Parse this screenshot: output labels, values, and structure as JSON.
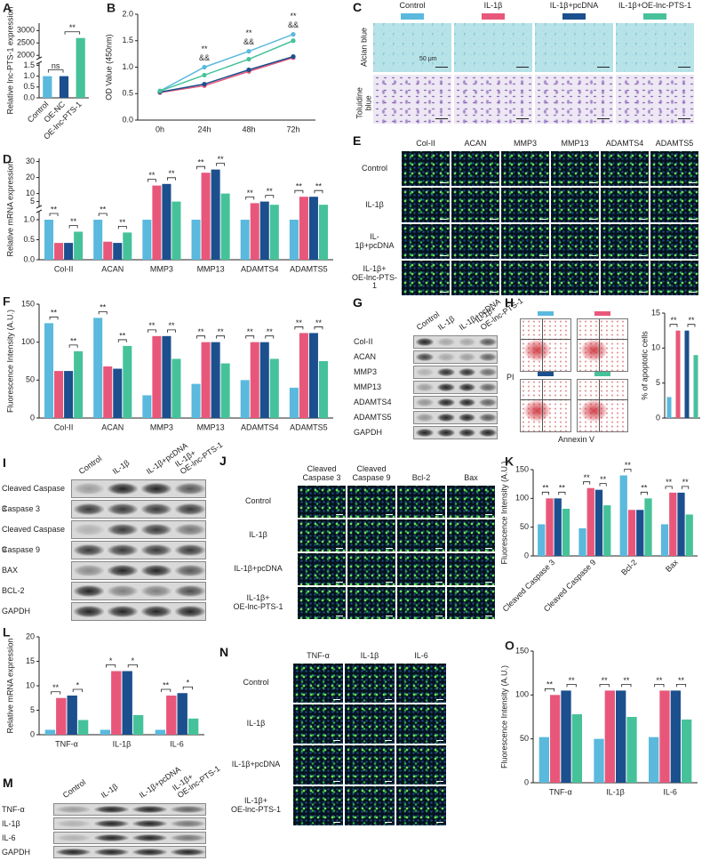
{
  "chart_data": [
    {
      "label": "A",
      "type": "bar",
      "y_label": "Relative lnc-PTS-1 expression",
      "categories": [
        "Control",
        "OE-NC",
        "OE-lnc-PTS-1"
      ],
      "values": [
        1,
        1,
        2700
      ],
      "colors": [
        "#5ab9dd",
        "#1c4f8e",
        "#46c29b"
      ],
      "ylim": [
        0,
        3300
      ],
      "ybreak": [
        1.6,
        1900
      ],
      "yticks": [
        {
          "value": 0,
          "label": "0.0"
        },
        {
          "value": 0.5,
          "label": "0.5"
        },
        {
          "value": 1,
          "label": "1.0"
        },
        {
          "value": 1.5,
          "label": "1.5"
        },
        2000,
        2500,
        3000
      ],
      "comparisons": [
        {
          "pair": [
            0,
            1
          ],
          "label": "ns"
        },
        {
          "pair": [
            1,
            2
          ],
          "label": "**"
        }
      ]
    },
    {
      "label": "B",
      "type": "line",
      "y_label": "OD Value (450nm)",
      "categories": [
        "0h",
        "24h",
        "48h",
        "72h"
      ],
      "series": [
        {
          "color": "#5ab9dd",
          "values": [
            0.55,
            1.0,
            1.3,
            1.62
          ]
        },
        {
          "color": "#e8577a",
          "values": [
            0.52,
            0.65,
            0.92,
            1.18
          ]
        },
        {
          "color": "#1c4f8e",
          "values": [
            0.53,
            0.68,
            0.95,
            1.2
          ]
        },
        {
          "color": "#46c29b",
          "values": [
            0.55,
            0.85,
            1.15,
            1.5
          ]
        }
      ],
      "ylim": [
        0,
        2
      ],
      "yticks": [
        {
          "value": 0,
          "label": "0.0"
        },
        {
          "value": 0.5,
          "label": "0.5"
        },
        {
          "value": 1,
          "label": "1.0"
        },
        {
          "value": 1.5,
          "label": "1.5"
        },
        {
          "value": 2,
          "label": "2.0"
        }
      ],
      "annotations": [
        {
          "category": 1,
          "label": "**"
        },
        {
          "category": 1,
          "label": "&&"
        },
        {
          "category": 2,
          "label": "**"
        },
        {
          "category": 2,
          "label": "&&"
        },
        {
          "category": 3,
          "label": "**"
        },
        {
          "category": 3,
          "label": "&&"
        }
      ]
    },
    {
      "label": "D",
      "type": "bar",
      "y_label": "Relative mRNA expression",
      "categories": [
        "Col-II",
        "ACAN",
        "MMP3",
        "MMP13",
        "ADAMTS4",
        "ADAMTS5"
      ],
      "series": [
        {
          "color": "#5ab9dd",
          "values": [
            1,
            1,
            1,
            1,
            1,
            1
          ]
        },
        {
          "color": "#e8577a",
          "values": [
            0.42,
            0.45,
            15,
            23,
            4,
            8
          ]
        },
        {
          "color": "#1c4f8e",
          "values": [
            0.42,
            0.42,
            16,
            25,
            5,
            8
          ]
        },
        {
          "color": "#46c29b",
          "values": [
            0.7,
            0.68,
            5,
            10,
            3,
            3
          ]
        }
      ],
      "ylim": [
        0,
        32
      ],
      "ybreak": [
        1.2,
        2
      ],
      "yticks": [
        {
          "value": 0,
          "label": "0.0"
        },
        {
          "value": 0.5,
          "label": "0.5"
        },
        {
          "value": 1,
          "label": "1.0"
        },
        5,
        10,
        20,
        30
      ],
      "comparisons": [
        {
          "category": 0,
          "pair": [
            0,
            1
          ],
          "label": "**"
        },
        {
          "category": 0,
          "pair": [
            2,
            3
          ],
          "label": "**"
        },
        {
          "category": 1,
          "pair": [
            0,
            1
          ],
          "label": "**"
        },
        {
          "category": 1,
          "pair": [
            2,
            3
          ],
          "label": "**"
        },
        {
          "category": 2,
          "pair": [
            0,
            1
          ],
          "label": "**"
        },
        {
          "category": 2,
          "pair": [
            2,
            3
          ],
          "label": "**"
        },
        {
          "category": 3,
          "pair": [
            0,
            1
          ],
          "label": "**"
        },
        {
          "category": 3,
          "pair": [
            2,
            3
          ],
          "label": "**"
        },
        {
          "category": 4,
          "pair": [
            0,
            1
          ],
          "label": "**"
        },
        {
          "category": 4,
          "pair": [
            2,
            3
          ],
          "label": "**"
        },
        {
          "category": 5,
          "pair": [
            0,
            1
          ],
          "label": "**"
        },
        {
          "category": 5,
          "pair": [
            2,
            3
          ],
          "label": "**"
        }
      ]
    },
    {
      "label": "F",
      "type": "bar",
      "y_label": "Fluorescence Intensity  (A.U.)",
      "categories": [
        "Col-II",
        "ACAN",
        "MMP3",
        "MMP13",
        "ADAMTS4",
        "ADAMTS5"
      ],
      "series": [
        {
          "color": "#5ab9dd",
          "values": [
            125,
            132,
            30,
            45,
            50,
            40
          ]
        },
        {
          "color": "#e8577a",
          "values": [
            62,
            68,
            108,
            100,
            100,
            112
          ]
        },
        {
          "color": "#1c4f8e",
          "values": [
            62,
            65,
            108,
            100,
            100,
            112
          ]
        },
        {
          "color": "#46c29b",
          "values": [
            88,
            95,
            78,
            72,
            78,
            75
          ]
        }
      ],
      "ylim": [
        0,
        150
      ],
      "yticks": [
        0,
        50,
        100,
        150
      ],
      "comparisons": [
        {
          "category": 0,
          "pair": [
            0,
            1
          ],
          "label": "**"
        },
        {
          "category": 0,
          "pair": [
            2,
            3
          ],
          "label": "**"
        },
        {
          "category": 1,
          "pair": [
            0,
            1
          ],
          "label": "**"
        },
        {
          "category": 1,
          "pair": [
            2,
            3
          ],
          "label": "**"
        },
        {
          "category": 2,
          "pair": [
            0,
            1
          ],
          "label": "**"
        },
        {
          "category": 2,
          "pair": [
            2,
            3
          ],
          "label": "**"
        },
        {
          "category": 3,
          "pair": [
            0,
            1
          ],
          "label": "**"
        },
        {
          "category": 3,
          "pair": [
            2,
            3
          ],
          "label": "**"
        },
        {
          "category": 4,
          "pair": [
            0,
            1
          ],
          "label": "**"
        },
        {
          "category": 4,
          "pair": [
            2,
            3
          ],
          "label": "**"
        },
        {
          "category": 5,
          "pair": [
            0,
            1
          ],
          "label": "**"
        },
        {
          "category": 5,
          "pair": [
            2,
            3
          ],
          "label": "**"
        }
      ]
    },
    {
      "type": "bar",
      "y_label": "% of apoptotic cells",
      "values": [
        3,
        12.5,
        12.5,
        9
      ],
      "colors": [
        "#5ab9dd",
        "#e8577a",
        "#1c4f8e",
        "#46c29b"
      ],
      "ylim": [
        0,
        15
      ],
      "yticks": [
        0,
        5,
        10,
        15
      ],
      "comparisons": [
        {
          "pair": [
            0,
            1
          ],
          "label": "**"
        },
        {
          "pair": [
            2,
            3
          ],
          "label": "**"
        }
      ]
    },
    {
      "label": "K",
      "type": "bar",
      "y_label": "Fluorescence Intensity  (A.U.)",
      "categories": [
        "Cleaved Caspase 3",
        "Cleaved Caspase 9",
        "Bcl-2",
        "Bax"
      ],
      "series": [
        {
          "color": "#5ab9dd",
          "values": [
            55,
            48,
            140,
            55
          ]
        },
        {
          "color": "#e8577a",
          "values": [
            100,
            118,
            80,
            110
          ]
        },
        {
          "color": "#1c4f8e",
          "values": [
            100,
            115,
            80,
            110
          ]
        },
        {
          "color": "#46c29b",
          "values": [
            82,
            88,
            100,
            72
          ]
        }
      ],
      "ylim": [
        0,
        150
      ],
      "yticks": [
        0,
        50,
        100,
        150
      ],
      "comparisons": [
        {
          "category": 0,
          "pair": [
            0,
            1
          ],
          "label": "**"
        },
        {
          "category": 0,
          "pair": [
            2,
            3
          ],
          "label": "**"
        },
        {
          "category": 1,
          "pair": [
            0,
            1
          ],
          "label": "**"
        },
        {
          "category": 1,
          "pair": [
            2,
            3
          ],
          "label": "**"
        },
        {
          "category": 2,
          "pair": [
            0,
            1
          ],
          "label": "**"
        },
        {
          "category": 2,
          "pair": [
            2,
            3
          ],
          "label": "**"
        },
        {
          "category": 3,
          "pair": [
            0,
            1
          ],
          "label": "**"
        },
        {
          "category": 3,
          "pair": [
            2,
            3
          ],
          "label": "**"
        }
      ]
    },
    {
      "label": "L",
      "type": "bar",
      "y_label": "Relative mRNA expression",
      "categories": [
        "TNF-α",
        "IL-1β",
        "IL-6"
      ],
      "series": [
        {
          "color": "#5ab9dd",
          "values": [
            1,
            1,
            1
          ]
        },
        {
          "color": "#e8577a",
          "values": [
            7.5,
            13,
            8
          ]
        },
        {
          "color": "#1c4f8e",
          "values": [
            8,
            13,
            8.5
          ]
        },
        {
          "color": "#46c29b",
          "values": [
            3,
            4,
            3.3
          ]
        }
      ],
      "ylim": [
        0,
        20
      ],
      "yticks": [
        0,
        5,
        10,
        15,
        20
      ],
      "comparisons": [
        {
          "category": 0,
          "pair": [
            0,
            1
          ],
          "label": "**"
        },
        {
          "category": 0,
          "pair": [
            2,
            3
          ],
          "label": "*"
        },
        {
          "category": 1,
          "pair": [
            0,
            1
          ],
          "label": "*"
        },
        {
          "category": 1,
          "pair": [
            2,
            3
          ],
          "label": "*"
        },
        {
          "category": 2,
          "pair": [
            0,
            1
          ],
          "label": "**"
        },
        {
          "category": 2,
          "pair": [
            2,
            3
          ],
          "label": "*"
        }
      ]
    },
    {
      "label": "O",
      "type": "bar",
      "y_label": "Fluorescence Intensity  (A.U.)",
      "categories": [
        "TNF-α",
        "IL-1β",
        "IL-6"
      ],
      "series": [
        {
          "color": "#5ab9dd",
          "values": [
            52,
            50,
            52
          ]
        },
        {
          "color": "#e8577a",
          "values": [
            100,
            105,
            105
          ]
        },
        {
          "color": "#1c4f8e",
          "values": [
            105,
            105,
            105
          ]
        },
        {
          "color": "#46c29b",
          "values": [
            78,
            75,
            72
          ]
        }
      ],
      "ylim": [
        0,
        150
      ],
      "yticks": [
        0,
        50,
        100,
        150
      ],
      "comparisons": [
        {
          "category": 0,
          "pair": [
            0,
            1
          ],
          "label": "**"
        },
        {
          "category": 0,
          "pair": [
            2,
            3
          ],
          "label": "**"
        },
        {
          "category": 1,
          "pair": [
            0,
            1
          ],
          "label": "**"
        },
        {
          "category": 1,
          "pair": [
            2,
            3
          ],
          "label": "**"
        },
        {
          "category": 2,
          "pair": [
            0,
            1
          ],
          "label": "**"
        },
        {
          "category": 2,
          "pair": [
            2,
            3
          ],
          "label": "**"
        }
      ]
    }
  ],
  "panels": {
    "C": {
      "label": "C",
      "groups": [
        {
          "name": "Control",
          "color": "#5ab9dd"
        },
        {
          "name": "IL-1β",
          "color": "#e8577a"
        },
        {
          "name": "IL-1β+pcDNA",
          "color": "#1c4f8e"
        },
        {
          "name": "IL-1β+OE-lnc-PTS-1",
          "color": "#46c29b"
        }
      ],
      "rows": [
        "Alcian blue",
        "Toluidine blue"
      ],
      "scale": "50 μm"
    },
    "E": {
      "label": "E",
      "columns": [
        "Col-II",
        "ACAN",
        "MMP3",
        "MMP13",
        "ADAMTS4",
        "ADAMTS5"
      ],
      "rows": [
        "Control",
        "IL-1β",
        "IL-1β+pcDNA",
        "IL-1β+\nOE-lnc-PTS-1"
      ]
    },
    "G": {
      "label": "G",
      "lanes": [
        "Control",
        "IL-1β",
        "IL-1β+pcDNA",
        "IL-1β+\nOE-lnc-PTS-1"
      ],
      "bands": [
        "Col-II",
        "ACAN",
        "MMP3",
        "MMP13",
        "ADAMTS4",
        "ADAMTS5",
        "GAPDH"
      ]
    },
    "H": {
      "label": "H",
      "y_label": "PI",
      "x_label": "Annexin V"
    },
    "I": {
      "label": "I",
      "lanes": [
        "Control",
        "IL-1β",
        "IL-1β+pcDNA",
        "IL-1β+\nOE-lnc-PTS-1"
      ],
      "bands": [
        "Cleaved Caspase 3",
        "Caspase 3",
        "Cleaved Caspase 9",
        "Caspase 9",
        "BAX",
        "BCL-2",
        "GAPDH"
      ]
    },
    "J": {
      "label": "J",
      "columns": [
        "Cleaved\nCaspase 3",
        "Cleaved\nCaspase 9",
        "Bcl-2",
        "Bax"
      ],
      "rows": [
        "Control",
        "IL-1β",
        "IL-1β+pcDNA",
        "IL-1β+\nOE-lnc-PTS-1"
      ]
    },
    "M": {
      "label": "M",
      "lanes": [
        "Control",
        "IL-1β",
        "IL-1β+pcDNA",
        "IL-1β+\nOE-lnc-PTS-1"
      ],
      "bands": [
        "TNF-α",
        "IL-1β",
        "IL-6",
        "GAPDH"
      ]
    },
    "N": {
      "label": "N",
      "columns": [
        "TNF-α",
        "IL-1β",
        "IL-6"
      ],
      "rows": [
        "Control",
        "IL-1β",
        "IL-1β+pcDNA",
        "IL-1β+\nOE-lnc-PTS-1"
      ]
    }
  }
}
